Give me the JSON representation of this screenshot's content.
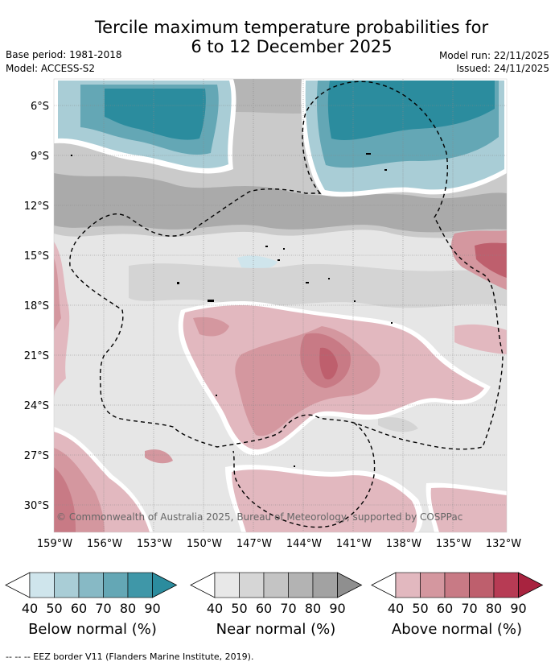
{
  "title_line1": "Tercile maximum temperature probabilities for",
  "title_line2": "6 to 12 December 2025",
  "base_period": "Base period: 1981-2018",
  "model": "Model: ACCESS-S2",
  "model_run": "Model run: 22/11/2025",
  "issued": "Issued: 24/11/2025",
  "copyright": "© Commonwealth of Australia 2025, Bureau of Meteorology, supported by COSPPac",
  "lat_labels": [
    "6°S",
    "9°S",
    "12°S",
    "15°S",
    "18°S",
    "21°S",
    "24°S",
    "27°S",
    "30°S"
  ],
  "lon_labels": [
    "159°W",
    "156°W",
    "153°W",
    "150°W",
    "147°W",
    "144°W",
    "141°W",
    "138°W",
    "135°W",
    "132°W"
  ],
  "colorbars": [
    {
      "name": "below",
      "label": "Below normal (%)",
      "ticks": [
        "40",
        "50",
        "60",
        "70",
        "80",
        "90"
      ],
      "colors": [
        "#cfe5ec",
        "#a9cdd6",
        "#87b9c5",
        "#64a7b5",
        "#3f97a8",
        "#2b8c9e"
      ]
    },
    {
      "name": "near",
      "label": "Near normal (%)",
      "ticks": [
        "40",
        "50",
        "60",
        "70",
        "80",
        "90"
      ],
      "colors": [
        "#e8e8e8",
        "#d6d6d6",
        "#c4c4c4",
        "#b3b3b3",
        "#a2a2a2",
        "#8f8f8f"
      ]
    },
    {
      "name": "above",
      "label": "Above normal (%)",
      "ticks": [
        "40",
        "50",
        "60",
        "70",
        "80",
        "90"
      ],
      "colors": [
        "#e2b8bf",
        "#d4979f",
        "#c87a85",
        "#be5f6d",
        "#b73b54",
        "#a8233f"
      ]
    }
  ],
  "eez_note": "--  --  -- EEZ border V11 (Flanders Marine Institute, 2019)."
}
